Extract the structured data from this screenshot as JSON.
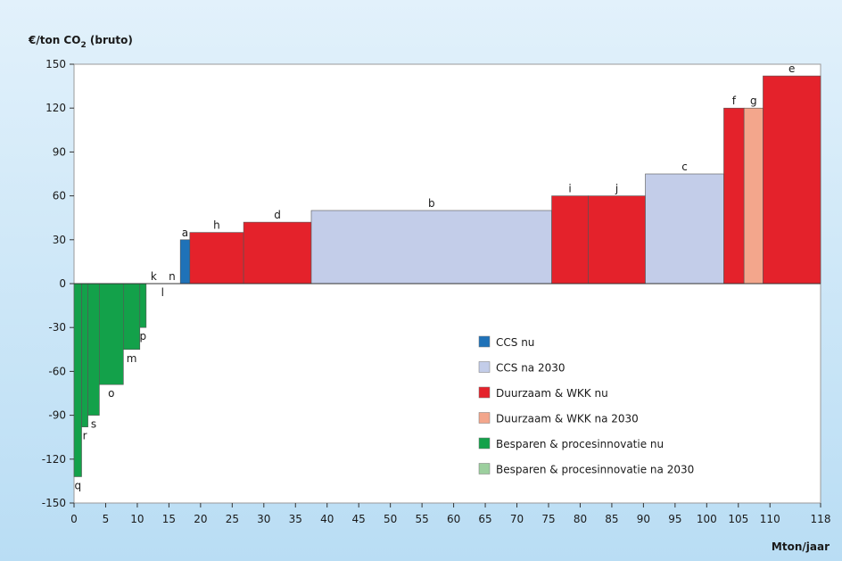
{
  "chart_data": {
    "type": "bar",
    "title": "",
    "ylabel_main": "€/ton CO",
    "ylabel_sub": "2",
    "ylabel_tail": " (bruto)",
    "xlabel": "Mton/jaar",
    "xlim": [
      0,
      118
    ],
    "ylim": [
      -150,
      150
    ],
    "xticks": [
      0,
      5,
      10,
      15,
      20,
      25,
      30,
      35,
      40,
      45,
      50,
      55,
      60,
      65,
      70,
      75,
      80,
      85,
      90,
      95,
      100,
      105,
      110,
      118
    ],
    "yticks": [
      150,
      120,
      90,
      60,
      30,
      0,
      -30,
      -60,
      -90,
      -120,
      -150
    ],
    "grid": false,
    "legend_position": "center-right",
    "categories": [
      {
        "key": "ccs_nu",
        "label": "CCS nu",
        "color": "#1f72b8"
      },
      {
        "key": "ccs_2030",
        "label": "CCS na 2030",
        "color": "#c3cde9"
      },
      {
        "key": "dw_nu",
        "label": "Duurzaam & WKK nu",
        "color": "#e4222b"
      },
      {
        "key": "dw_2030",
        "label": "Duurzaam & WKK na 2030",
        "color": "#f3a68c"
      },
      {
        "key": "bp_nu",
        "label": "Besparen & procesinnovatie nu",
        "color": "#13a14a"
      },
      {
        "key": "bp_2030",
        "label": "Besparen & procesinnovatie na 2030",
        "color": "#9ccf9e"
      }
    ],
    "bars": [
      {
        "label": "q",
        "x0": 0.0,
        "x1": 1.2,
        "value": -132,
        "cat": "bp_nu",
        "label_pos": "below"
      },
      {
        "label": "r",
        "x0": 1.2,
        "x1": 2.2,
        "value": -98,
        "cat": "bp_nu",
        "label_pos": "below"
      },
      {
        "label": "s",
        "x0": 2.2,
        "x1": 4.0,
        "value": -90,
        "cat": "bp_nu",
        "label_pos": "below"
      },
      {
        "label": "o",
        "x0": 4.0,
        "x1": 7.8,
        "value": -69,
        "cat": "bp_nu",
        "label_pos": "below"
      },
      {
        "label": "m",
        "x0": 7.8,
        "x1": 10.4,
        "value": -45,
        "cat": "bp_nu",
        "label_pos": "below"
      },
      {
        "label": "p",
        "x0": 10.4,
        "x1": 11.4,
        "value": -30,
        "cat": "bp_nu",
        "label_pos": "below"
      },
      {
        "label": "k",
        "x0": 11.4,
        "x1": 13.8,
        "value": 0,
        "cat": "bp_nu",
        "label_pos": "above"
      },
      {
        "label": "l",
        "x0": 13.8,
        "x1": 14.2,
        "value": 0,
        "cat": "bp_nu",
        "label_pos": "below"
      },
      {
        "label": "n",
        "x0": 14.2,
        "x1": 16.8,
        "value": 0,
        "cat": "bp_nu",
        "label_pos": "above"
      },
      {
        "label": "a",
        "x0": 16.8,
        "x1": 18.3,
        "value": 30,
        "cat": "ccs_nu",
        "label_pos": "above"
      },
      {
        "label": "h",
        "x0": 18.3,
        "x1": 26.8,
        "value": 35,
        "cat": "dw_nu",
        "label_pos": "above"
      },
      {
        "label": "d",
        "x0": 26.8,
        "x1": 37.5,
        "value": 42,
        "cat": "dw_nu",
        "label_pos": "above"
      },
      {
        "label": "b",
        "x0": 37.5,
        "x1": 75.5,
        "value": 50,
        "cat": "ccs_2030",
        "label_pos": "above"
      },
      {
        "label": "i",
        "x0": 75.5,
        "x1": 81.3,
        "value": 60,
        "cat": "dw_nu",
        "label_pos": "above"
      },
      {
        "label": "j",
        "x0": 81.3,
        "x1": 90.3,
        "value": 60,
        "cat": "dw_nu",
        "label_pos": "above"
      },
      {
        "label": "c",
        "x0": 90.3,
        "x1": 102.7,
        "value": 75,
        "cat": "ccs_2030",
        "label_pos": "above"
      },
      {
        "label": "f",
        "x0": 102.7,
        "x1": 105.9,
        "value": 120,
        "cat": "dw_nu",
        "label_pos": "above"
      },
      {
        "label": "g",
        "x0": 105.9,
        "x1": 108.9,
        "value": 120,
        "cat": "dw_2030",
        "label_pos": "above"
      },
      {
        "label": "e",
        "x0": 108.9,
        "x1": 118.0,
        "value": 142,
        "cat": "dw_nu",
        "label_pos": "above"
      }
    ]
  }
}
